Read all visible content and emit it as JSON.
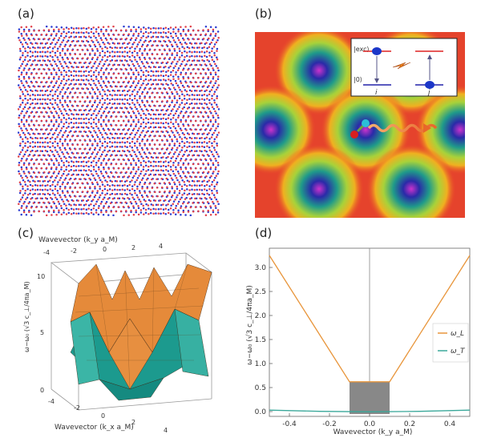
{
  "panels": {
    "a": {
      "label": "(a)"
    },
    "b": {
      "label": "(b)",
      "inset": {
        "exc_label": "|exc⟩",
        "ground_label": "|0⟩",
        "site_i": "i",
        "site_j": "j"
      }
    },
    "c": {
      "label": "(c)",
      "top_axis_label": "Wavevector (k_y a_M)",
      "top_ticks": [
        "-4",
        "-2",
        "0",
        "2",
        "4"
      ],
      "bottom_axis_label": "Wavevector (k_x a_M)",
      "bottom_ticks": [
        "-4",
        "-2",
        "0",
        "2",
        "4"
      ],
      "z_label": "ω−ω₀ (√3 c_⊥/4πa_M)",
      "z_ticks": [
        "0",
        "5",
        "10"
      ]
    },
    "d": {
      "label": "(d)",
      "ylabel": "ω−ω₀ (√3 c_⊥/4πa_M)",
      "xlabel": "Wavevector (k_y a_M)"
    }
  },
  "chart_data": [
    {
      "type": "line",
      "panel": "d",
      "xlabel": "Wavevector (k_y a_M)",
      "ylabel": "ω−ω₀ (√3 c_⊥/4πa_M)",
      "xlim": [
        -0.5,
        0.5
      ],
      "ylim": [
        -0.1,
        3.4
      ],
      "x_ticks": [
        -0.4,
        -0.2,
        0.0,
        0.2,
        0.4
      ],
      "y_ticks": [
        0.0,
        0.5,
        1.0,
        1.5,
        2.0,
        2.5,
        3.0
      ],
      "x_tick_labels": [
        "-0.4",
        "-0.2",
        "0.0",
        "0.2",
        "0.4"
      ],
      "y_tick_labels": [
        "0.0",
        "0.5",
        "1.0",
        "1.5",
        "2.0",
        "2.5",
        "3.0"
      ],
      "legend": "right",
      "series": [
        {
          "name": "ω_L",
          "color": "#e8953a",
          "x": [
            -0.5,
            -0.1,
            0.1,
            0.5
          ],
          "y": [
            3.25,
            0.62,
            0.62,
            3.25
          ]
        },
        {
          "name": "ω_T",
          "color": "#3aa89a",
          "x": [
            -0.5,
            -0.25,
            0.0,
            0.25,
            0.5
          ],
          "y": [
            0.03,
            0.005,
            -0.005,
            0.005,
            0.03
          ]
        }
      ],
      "shaded_box": {
        "x": [
          -0.1,
          0.1
        ],
        "y": [
          -0.05,
          0.62
        ],
        "color": "#888888"
      }
    }
  ]
}
